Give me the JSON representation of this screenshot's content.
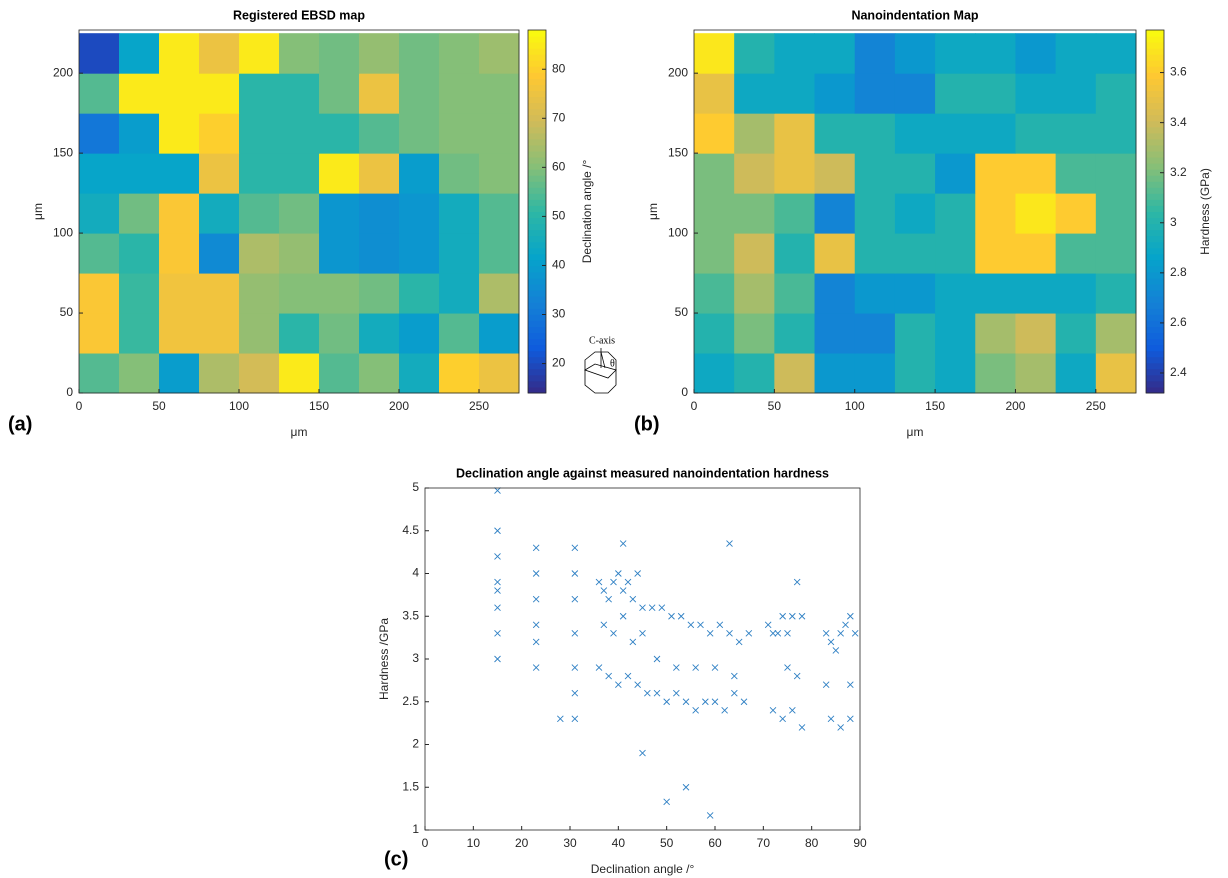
{
  "chart_data": [
    {
      "type": "heatmap",
      "title": "Registered EBSD map",
      "panel_label": "(a)",
      "xlabel": "μm",
      "ylabel": "μm",
      "colorbar_label": "Declination angle /°",
      "colormap": "parula",
      "xbins": [
        0,
        25,
        50,
        75,
        100,
        125,
        150,
        175,
        200,
        225,
        250,
        275
      ],
      "ybins": [
        0,
        25,
        50,
        75,
        100,
        125,
        150,
        175,
        200,
        225
      ],
      "z": [
        [
          55,
          60,
          40,
          65,
          70,
          85,
          55,
          60,
          45,
          80,
          75
        ],
        [
          78,
          52,
          76,
          76,
          62,
          50,
          58,
          45,
          40,
          55,
          40
        ],
        [
          78,
          52,
          76,
          76,
          62,
          60,
          60,
          58,
          50,
          45,
          65
        ],
        [
          55,
          50,
          78,
          35,
          65,
          62,
          38,
          36,
          38,
          45,
          55
        ],
        [
          45,
          58,
          78,
          45,
          55,
          58,
          38,
          36,
          38,
          45,
          55
        ],
        [
          42,
          42,
          42,
          75,
          50,
          50,
          85,
          75,
          40,
          58,
          60
        ],
        [
          30,
          40,
          85,
          80,
          50,
          50,
          50,
          55,
          58,
          60,
          60
        ],
        [
          55,
          85,
          85,
          85,
          50,
          50,
          58,
          75,
          58,
          60,
          60
        ],
        [
          20,
          42,
          85,
          75,
          85,
          60,
          58,
          62,
          58,
          60,
          63
        ]
      ],
      "xlim": [
        0,
        275
      ],
      "xticks": [
        0,
        50,
        100,
        150,
        200,
        250
      ],
      "ylim": [
        0,
        227
      ],
      "yticks": [
        0,
        50,
        100,
        150,
        200
      ],
      "clim": [
        14,
        88
      ],
      "colorbar_ticks": [
        20,
        30,
        40,
        50,
        60,
        70,
        80
      ],
      "annotations": [
        "C-axis",
        "θ"
      ]
    },
    {
      "type": "heatmap",
      "title": "Nanoindentation Map",
      "panel_label": "(b)",
      "xlabel": "μm",
      "ylabel": "μm",
      "colorbar_label": "Hardness (GPa)",
      "colormap": "parula",
      "xbins": [
        0,
        25,
        50,
        75,
        100,
        125,
        150,
        175,
        200,
        225,
        250,
        275
      ],
      "ybins": [
        0,
        25,
        50,
        75,
        100,
        125,
        150,
        175,
        200,
        225
      ],
      "z": [
        [
          2.9,
          3.0,
          3.4,
          2.8,
          2.8,
          3.0,
          2.9,
          3.2,
          3.3,
          2.9,
          3.5
        ],
        [
          3.0,
          3.2,
          3.0,
          2.7,
          2.7,
          3.0,
          2.9,
          3.3,
          3.4,
          3.0,
          3.3
        ],
        [
          3.1,
          3.3,
          3.1,
          2.7,
          2.8,
          2.8,
          2.9,
          2.9,
          2.9,
          2.9,
          3.0
        ],
        [
          3.2,
          3.4,
          3.0,
          3.5,
          3.0,
          3.0,
          3.0,
          3.6,
          3.6,
          3.1,
          3.1
        ],
        [
          3.2,
          3.2,
          3.1,
          2.7,
          3.0,
          2.9,
          3.0,
          3.6,
          3.7,
          3.6,
          3.1
        ],
        [
          3.2,
          3.4,
          3.5,
          3.4,
          3.0,
          3.0,
          2.8,
          3.6,
          3.6,
          3.1,
          3.1
        ],
        [
          3.6,
          3.3,
          3.5,
          3.0,
          3.0,
          2.9,
          2.9,
          2.9,
          3.0,
          3.0,
          3.0
        ],
        [
          3.5,
          2.9,
          2.9,
          2.8,
          2.7,
          2.7,
          3.0,
          3.0,
          2.9,
          2.9,
          3.0
        ],
        [
          3.7,
          3.0,
          2.9,
          2.9,
          2.7,
          2.8,
          2.9,
          2.9,
          2.8,
          2.9,
          2.9
        ]
      ],
      "xlim": [
        0,
        275
      ],
      "xticks": [
        0,
        50,
        100,
        150,
        200,
        250
      ],
      "ylim": [
        0,
        227
      ],
      "yticks": [
        0,
        50,
        100,
        150,
        200
      ],
      "clim": [
        2.32,
        3.77
      ],
      "colorbar_ticks": [
        2.4,
        2.6,
        2.8,
        3,
        3.2,
        3.4,
        3.6
      ]
    },
    {
      "type": "scatter",
      "title": "Declination angle against measured nanoindentation hardness",
      "panel_label": "(c)",
      "xlabel": "Declination angle /°",
      "ylabel": "Hardness /GPa",
      "color": "#2f80c4",
      "marker": "x",
      "x": [
        15,
        15,
        15,
        15,
        15,
        15,
        15,
        15,
        23,
        23,
        23,
        23,
        23,
        23,
        31,
        31,
        31,
        31,
        31,
        31,
        31,
        28,
        36,
        37,
        38,
        39,
        40,
        41,
        42,
        43,
        44,
        45,
        36,
        38,
        40,
        42,
        44,
        37,
        39,
        41,
        43,
        45,
        47,
        49,
        51,
        53,
        55,
        57,
        59,
        61,
        63,
        65,
        67,
        46,
        48,
        50,
        52,
        54,
        56,
        58,
        60,
        62,
        64,
        66,
        48,
        52,
        56,
        60,
        64,
        71,
        72,
        73,
        74,
        75,
        76,
        77,
        78,
        72,
        74,
        76,
        78,
        75,
        77,
        83,
        84,
        85,
        86,
        87,
        88,
        89,
        84,
        86,
        88,
        83,
        88,
        50,
        59,
        54,
        63,
        41,
        45
      ],
      "values": [
        4.97,
        4.5,
        4.2,
        3.9,
        3.6,
        3.3,
        3.0,
        3.8,
        4.3,
        4.0,
        3.7,
        3.4,
        3.2,
        2.9,
        4.3,
        4.0,
        3.7,
        3.3,
        2.9,
        2.6,
        2.3,
        2.3,
        3.9,
        3.8,
        3.7,
        3.9,
        4.0,
        3.8,
        3.9,
        3.7,
        4.0,
        3.6,
        2.9,
        2.8,
        2.7,
        2.8,
        2.7,
        3.4,
        3.3,
        3.5,
        3.2,
        3.3,
        3.6,
        3.6,
        3.5,
        3.5,
        3.4,
        3.4,
        3.3,
        3.4,
        3.3,
        3.2,
        3.3,
        2.6,
        2.6,
        2.5,
        2.6,
        2.5,
        2.4,
        2.5,
        2.5,
        2.4,
        2.6,
        2.5,
        3.0,
        2.9,
        2.9,
        2.9,
        2.8,
        3.4,
        3.3,
        3.3,
        3.5,
        3.3,
        3.5,
        3.9,
        3.5,
        2.4,
        2.3,
        2.4,
        2.2,
        2.9,
        2.8,
        3.3,
        3.2,
        3.1,
        3.3,
        3.4,
        3.5,
        3.3,
        2.3,
        2.2,
        2.3,
        2.7,
        2.7,
        1.33,
        1.17,
        1.5,
        4.35,
        4.35,
        1.9
      ],
      "xlim": [
        0,
        90
      ],
      "xticks": [
        0,
        10,
        20,
        30,
        40,
        50,
        60,
        70,
        80,
        90
      ],
      "ylim": [
        1,
        5
      ],
      "yticks": [
        1,
        1.5,
        2,
        2.5,
        3,
        3.5,
        4,
        4.5,
        5
      ]
    }
  ]
}
